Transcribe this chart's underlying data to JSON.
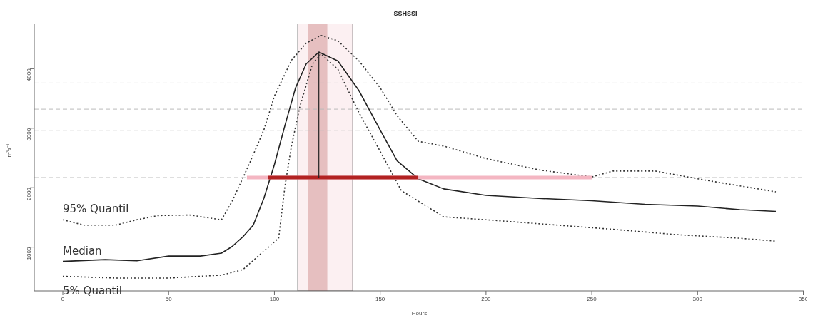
{
  "chart_data": {
    "type": "line",
    "title": "SSHSSI",
    "xlabel": "Hours",
    "ylabel": "m³s⁻¹",
    "xlim": [
      -13.5,
      350.5
    ],
    "xticks": [
      0,
      50,
      100,
      150,
      200,
      250,
      300,
      350
    ],
    "ylim": [
      264,
      4760
    ],
    "yticks": [
      1000,
      2000,
      3000,
      4000
    ],
    "ref_lines": [
      {
        "axis": "y",
        "value": 3760,
        "color": "#bbbbbb",
        "line_style": "dashed"
      },
      {
        "axis": "y",
        "value": 3320,
        "color": "#bbbbbb",
        "line_style": "dashed"
      },
      {
        "axis": "y",
        "value": 2965,
        "color": "#bbbbbb",
        "line_style": "dashed"
      },
      {
        "axis": "y",
        "value": 2170,
        "color": "#bbbbbb",
        "line_style": "dashed"
      }
    ],
    "bands": [
      {
        "axis": "x",
        "from": 111,
        "to": 137,
        "color": "#f4c2cc"
      },
      {
        "axis": "x",
        "from": 116,
        "to": 125,
        "color": "#a52a2a"
      }
    ],
    "series": [
      {
        "name": "95% Quantil",
        "color": "#333333",
        "line_style": "dotted",
        "x": [
          0,
          10,
          25,
          35,
          45,
          60,
          75,
          80,
          88,
          95,
          100,
          108,
          115,
          122,
          130,
          140,
          150,
          158,
          168,
          180,
          200,
          225,
          250,
          260,
          280,
          300,
          320,
          337
        ],
        "values": [
          1460,
          1370,
          1370,
          1460,
          1530,
          1540,
          1460,
          1770,
          2390,
          2970,
          3540,
          4140,
          4430,
          4560,
          4470,
          4130,
          3680,
          3210,
          2780,
          2700,
          2490,
          2300,
          2180,
          2280,
          2280,
          2150,
          2030,
          1930
        ]
      },
      {
        "name": "Median",
        "color": "#222222",
        "line_style": "solid",
        "x": [
          0,
          20,
          35,
          50,
          65,
          75,
          80,
          85,
          90,
          95,
          100,
          105,
          110,
          115,
          121,
          130,
          140,
          150,
          158,
          168,
          180,
          200,
          225,
          250,
          275,
          300,
          320,
          337
        ],
        "values": [
          760,
          790,
          770,
          850,
          850,
          900,
          1010,
          1170,
          1370,
          1820,
          2390,
          3050,
          3680,
          4080,
          4280,
          4130,
          3630,
          2970,
          2450,
          2150,
          1980,
          1870,
          1820,
          1780,
          1720,
          1690,
          1630,
          1600
        ]
      },
      {
        "name": "5% Quantil",
        "color": "#333333",
        "line_style": "dotted",
        "x": [
          0,
          25,
          50,
          75,
          85,
          102,
          105,
          108,
          112,
          118,
          122,
          130,
          140,
          150,
          160,
          180,
          200,
          230,
          260,
          290,
          320,
          337
        ],
        "values": [
          510,
          480,
          480,
          530,
          620,
          1150,
          2030,
          2690,
          3360,
          4080,
          4250,
          3990,
          3260,
          2610,
          1950,
          1510,
          1460,
          1380,
          1300,
          1210,
          1150,
          1100
        ]
      },
      {
        "color": "#f4b6c2",
        "line_style": "solid",
        "x": [
          87,
          250
        ],
        "values": [
          2170,
          2170
        ]
      },
      {
        "color": "#b22222",
        "line_style": "solid",
        "x": [
          97,
          168
        ],
        "values": [
          2170,
          2170
        ]
      },
      {
        "color": "#222222",
        "line_style": "solid",
        "x": [
          121,
          121
        ],
        "values": [
          2170,
          4280
        ]
      }
    ]
  }
}
